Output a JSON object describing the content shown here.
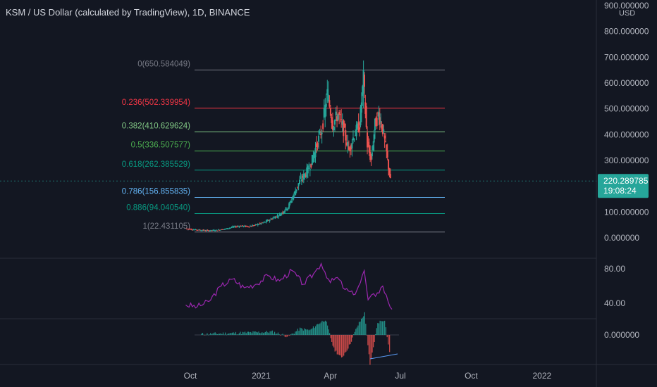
{
  "header": {
    "title": "KSM / US Dollar (calculated by TradingView), 1D, BINANCE",
    "currency": "USD"
  },
  "colors": {
    "background": "#131722",
    "up": "#26a69a",
    "down": "#ef5350",
    "rsi": "#9c27b0",
    "price_label": "#26a69a"
  },
  "chart_data": [
    {
      "type": "candlestick",
      "title": "KSM / US Dollar (calculated by TradingView), 1D, BINANCE",
      "y_unit": "USD",
      "x_ticks": [
        "Oct",
        "2021",
        "Apr",
        "Jul",
        "Oct",
        "2022"
      ],
      "y_ticks": [
        "900.000000",
        "800.000000",
        "700.000000",
        "600.000000",
        "500.000000",
        "400.000000",
        "300.000000",
        "200.000000",
        "100.000000",
        "0.000000"
      ],
      "ylim": [
        0,
        900
      ],
      "last_price": "220.289785",
      "countdown": "19:08:24",
      "close_series": [
        {
          "x": "2020-09-25",
          "y": 36
        },
        {
          "x": "2020-10-05",
          "y": 32
        },
        {
          "x": "2020-10-15",
          "y": 30
        },
        {
          "x": "2020-10-25",
          "y": 28
        },
        {
          "x": "2020-11-05",
          "y": 30
        },
        {
          "x": "2020-11-15",
          "y": 34
        },
        {
          "x": "2020-11-25",
          "y": 42
        },
        {
          "x": "2020-12-05",
          "y": 46
        },
        {
          "x": "2020-12-15",
          "y": 44
        },
        {
          "x": "2020-12-25",
          "y": 50
        },
        {
          "x": "2021-01-05",
          "y": 60
        },
        {
          "x": "2021-01-15",
          "y": 75
        },
        {
          "x": "2021-01-25",
          "y": 90
        },
        {
          "x": "2021-02-05",
          "y": 120
        },
        {
          "x": "2021-02-12",
          "y": 165
        },
        {
          "x": "2021-02-20",
          "y": 220
        },
        {
          "x": "2021-02-28",
          "y": 250
        },
        {
          "x": "2021-03-07",
          "y": 290
        },
        {
          "x": "2021-03-14",
          "y": 360
        },
        {
          "x": "2021-03-21",
          "y": 420
        },
        {
          "x": "2021-03-28",
          "y": 560
        },
        {
          "x": "2021-04-04",
          "y": 440
        },
        {
          "x": "2021-04-11",
          "y": 480
        },
        {
          "x": "2021-04-18",
          "y": 420
        },
        {
          "x": "2021-04-25",
          "y": 340
        },
        {
          "x": "2021-05-02",
          "y": 400
        },
        {
          "x": "2021-05-09",
          "y": 440
        },
        {
          "x": "2021-05-14",
          "y": 620
        },
        {
          "x": "2021-05-19",
          "y": 360
        },
        {
          "x": "2021-05-24",
          "y": 300
        },
        {
          "x": "2021-05-29",
          "y": 440
        },
        {
          "x": "2021-06-03",
          "y": 480
        },
        {
          "x": "2021-06-08",
          "y": 420
        },
        {
          "x": "2021-06-13",
          "y": 330
        },
        {
          "x": "2021-06-18",
          "y": 220
        }
      ],
      "fibonacci": [
        {
          "label": "0(650.584049)",
          "value": 650.584049,
          "color": "#787b86"
        },
        {
          "label": "0.236(502.339954)",
          "value": 502.339954,
          "color": "#f23645"
        },
        {
          "label": "0.382(410.629624)",
          "value": 410.629624,
          "color": "#81c784"
        },
        {
          "label": "0.5(336.507577)",
          "value": 336.507577,
          "color": "#4caf50"
        },
        {
          "label": "0.618(262.385529)",
          "value": 262.385529,
          "color": "#089981"
        },
        {
          "label": "0.786(156.855835)",
          "value": 156.855835,
          "color": "#64b5f6"
        },
        {
          "label": "0.886(94.040540)",
          "value": 94.04054,
          "color": "#089981"
        },
        {
          "label": "1(22.431105)",
          "value": 22.431105,
          "color": "#787b86"
        }
      ]
    },
    {
      "type": "line",
      "y_ticks": [
        "80.00",
        "40.00"
      ],
      "ylim": [
        25,
        90
      ],
      "series": [
        {
          "values": [
            {
              "x": "2020-09-25",
              "y": 38
            },
            {
              "x": "2020-10-10",
              "y": 36
            },
            {
              "x": "2020-10-25",
              "y": 42
            },
            {
              "x": "2020-11-10",
              "y": 60
            },
            {
              "x": "2020-11-25",
              "y": 68
            },
            {
              "x": "2020-12-10",
              "y": 58
            },
            {
              "x": "2020-12-25",
              "y": 62
            },
            {
              "x": "2021-01-10",
              "y": 72
            },
            {
              "x": "2021-01-25",
              "y": 66
            },
            {
              "x": "2021-02-10",
              "y": 78
            },
            {
              "x": "2021-02-25",
              "y": 62
            },
            {
              "x": "2021-03-10",
              "y": 74
            },
            {
              "x": "2021-03-20",
              "y": 86
            },
            {
              "x": "2021-04-01",
              "y": 64
            },
            {
              "x": "2021-04-10",
              "y": 70
            },
            {
              "x": "2021-04-20",
              "y": 56
            },
            {
              "x": "2021-05-01",
              "y": 50
            },
            {
              "x": "2021-05-10",
              "y": 64
            },
            {
              "x": "2021-05-15",
              "y": 78
            },
            {
              "x": "2021-05-20",
              "y": 44
            },
            {
              "x": "2021-06-01",
              "y": 52
            },
            {
              "x": "2021-06-08",
              "y": 60
            },
            {
              "x": "2021-06-15",
              "y": 42
            },
            {
              "x": "2021-06-20",
              "y": 33
            }
          ]
        }
      ]
    },
    {
      "type": "bar",
      "y_ticks": [
        "0.000000"
      ],
      "series": [
        {
          "values": [
            {
              "x": "2020-10-15",
              "y": 1
            },
            {
              "x": "2020-11-15",
              "y": 2
            },
            {
              "x": "2020-12-15",
              "y": 3
            },
            {
              "x": "2021-01-15",
              "y": 4
            },
            {
              "x": "2021-02-05",
              "y": -2
            },
            {
              "x": "2021-02-20",
              "y": 8
            },
            {
              "x": "2021-03-05",
              "y": 6
            },
            {
              "x": "2021-03-15",
              "y": 14
            },
            {
              "x": "2021-03-25",
              "y": 20
            },
            {
              "x": "2021-04-05",
              "y": -18
            },
            {
              "x": "2021-04-15",
              "y": -30
            },
            {
              "x": "2021-04-25",
              "y": -14
            },
            {
              "x": "2021-05-05",
              "y": 10
            },
            {
              "x": "2021-05-15",
              "y": 28
            },
            {
              "x": "2021-05-22",
              "y": -40
            },
            {
              "x": "2021-06-01",
              "y": 16
            },
            {
              "x": "2021-06-10",
              "y": 20
            },
            {
              "x": "2021-06-18",
              "y": -34
            }
          ]
        }
      ]
    }
  ]
}
